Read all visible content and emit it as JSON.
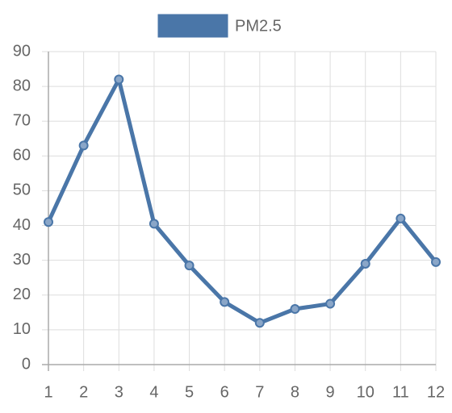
{
  "chart_data": {
    "type": "line",
    "x": [
      1,
      2,
      3,
      4,
      5,
      6,
      7,
      8,
      9,
      10,
      11,
      12
    ],
    "series": [
      {
        "name": "PM2.5",
        "color": "#4a76a8",
        "values": [
          41,
          63,
          82,
          40.5,
          28.5,
          18,
          12,
          16,
          17.5,
          29,
          42,
          29.5
        ]
      }
    ],
    "xlim": [
      1,
      12
    ],
    "xticks": [
      1,
      2,
      3,
      4,
      5,
      6,
      7,
      8,
      9,
      10,
      11,
      12
    ],
    "ylim": [
      0,
      90
    ],
    "yticks": [
      0,
      10,
      20,
      30,
      40,
      50,
      60,
      70,
      80,
      90
    ],
    "grid": true,
    "legend": "top"
  }
}
